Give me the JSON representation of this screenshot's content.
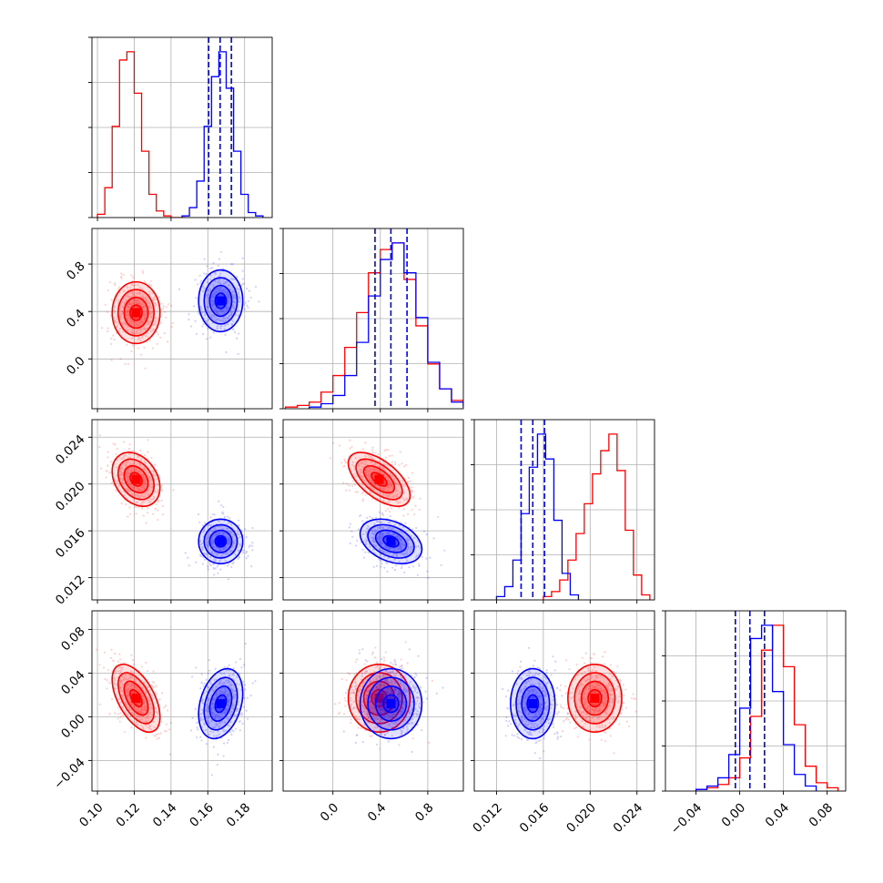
{
  "chart_data": {
    "type": "corner",
    "grid": true,
    "dims": 4,
    "series": [
      {
        "color": "#ff0000",
        "means": [
          0.121,
          0.39,
          0.0204,
          0.017
        ],
        "sds": [
          0.0065,
          0.13,
          0.00115,
          0.0155
        ],
        "corr": [
          [
            1,
            0,
            -0.3,
            -0.55
          ],
          [
            0,
            1,
            -0.6,
            0
          ],
          [
            -0.3,
            -0.6,
            1,
            0
          ],
          [
            -0.55,
            0,
            0,
            1
          ]
        ],
        "hist_bins": [
          [
            0.1,
            0.104,
            0.108,
            0.112,
            0.116,
            0.12,
            0.124,
            0.128,
            0.132,
            0.136,
            0.14,
            0.144,
            0.148
          ],
          [
            -0.4,
            -0.3,
            -0.2,
            -0.1,
            0.0,
            0.1,
            0.2,
            0.3,
            0.4,
            0.5,
            0.6,
            0.7,
            0.8,
            0.9,
            1.0,
            1.1,
            1.2
          ],
          [
            0.016,
            0.0167,
            0.0174,
            0.0181,
            0.0188,
            0.0195,
            0.0202,
            0.0209,
            0.0216,
            0.0223,
            0.023,
            0.0237,
            0.0244,
            0.0251
          ],
          [
            -0.04,
            -0.03,
            -0.02,
            -0.01,
            0.0,
            0.01,
            0.02,
            0.03,
            0.04,
            0.05,
            0.06,
            0.07,
            0.08,
            0.09
          ]
        ],
        "hist_counts": [
          [
            2,
            18,
            55,
            95,
            100,
            75,
            40,
            14,
            4,
            1,
            0,
            0
          ],
          [
            1,
            2,
            4,
            10,
            20,
            37,
            58,
            82,
            96,
            100,
            78,
            50,
            27,
            12,
            5,
            2
          ],
          [
            2,
            5,
            12,
            24,
            40,
            58,
            76,
            90,
            100,
            78,
            42,
            15,
            3
          ],
          [
            1,
            2,
            4,
            8,
            20,
            45,
            85,
            100,
            75,
            40,
            15,
            5,
            2
          ]
        ]
      },
      {
        "color": "#0000ff",
        "means": [
          0.167,
          0.49,
          0.0151,
          0.012
        ],
        "sds": [
          0.006,
          0.13,
          0.00095,
          0.016
        ],
        "corr": [
          [
            1,
            0,
            0,
            0.3
          ],
          [
            0,
            1,
            -0.35,
            0
          ],
          [
            0,
            -0.35,
            1,
            0
          ],
          [
            0.3,
            0,
            0,
            1
          ]
        ],
        "quantiles": [
          [
            0.1605,
            0.1667,
            0.1728
          ],
          [
            0.355,
            0.489,
            0.625
          ],
          [
            0.0141,
            0.0151,
            0.0161
          ],
          [
            -0.004,
            0.0093,
            0.0227
          ]
        ],
        "hist_bins": [
          [
            0.146,
            0.15,
            0.154,
            0.158,
            0.162,
            0.166,
            0.17,
            0.174,
            0.178,
            0.182,
            0.186,
            0.19
          ],
          [
            -0.2,
            -0.1,
            0.0,
            0.1,
            0.2,
            0.3,
            0.4,
            0.5,
            0.6,
            0.7,
            0.8,
            0.9,
            1.0,
            1.1,
            1.2
          ],
          [
            0.012,
            0.0127,
            0.0134,
            0.0141,
            0.0148,
            0.0155,
            0.0162,
            0.0169,
            0.0176,
            0.0183,
            0.019
          ],
          [
            -0.04,
            -0.03,
            -0.02,
            -0.01,
            0.0,
            0.01,
            0.02,
            0.03,
            0.04,
            0.05,
            0.06,
            0.07
          ]
        ],
        "hist_counts": [
          [
            1,
            6,
            22,
            55,
            85,
            100,
            78,
            40,
            14,
            3,
            1
          ],
          [
            1,
            3,
            8,
            20,
            40,
            68,
            90,
            100,
            82,
            55,
            28,
            12,
            4,
            1
          ],
          [
            2,
            8,
            24,
            52,
            80,
            100,
            85,
            48,
            16,
            3
          ],
          [
            1,
            3,
            8,
            22,
            50,
            92,
            100,
            60,
            28,
            10,
            3
          ]
        ]
      }
    ],
    "ranges": [
      [
        0.097,
        0.195
      ],
      [
        -0.42,
        1.1
      ],
      [
        0.0101,
        0.0255
      ],
      [
        -0.068,
        0.097
      ]
    ],
    "ticks": [
      [
        0.1,
        0.12,
        0.14,
        0.16,
        0.18
      ],
      [
        0.0,
        0.4,
        0.8
      ],
      [
        0.012,
        0.016,
        0.02,
        0.024
      ],
      [
        -0.04,
        0.0,
        0.04,
        0.08
      ]
    ],
    "tick_labels": [
      [
        "0.10",
        "0.12",
        "0.14",
        "0.16",
        "0.18"
      ],
      [
        "0.0",
        "0.4",
        "0.8"
      ],
      [
        "0.012",
        "0.016",
        "0.020",
        "0.024"
      ],
      [
        "−0.04",
        "0.00",
        "0.04",
        "0.08"
      ]
    ],
    "quantile_line_color": "#0000ff",
    "contour_levels_sigma": [
      0.5,
      1.0,
      1.5,
      2.0
    ]
  }
}
